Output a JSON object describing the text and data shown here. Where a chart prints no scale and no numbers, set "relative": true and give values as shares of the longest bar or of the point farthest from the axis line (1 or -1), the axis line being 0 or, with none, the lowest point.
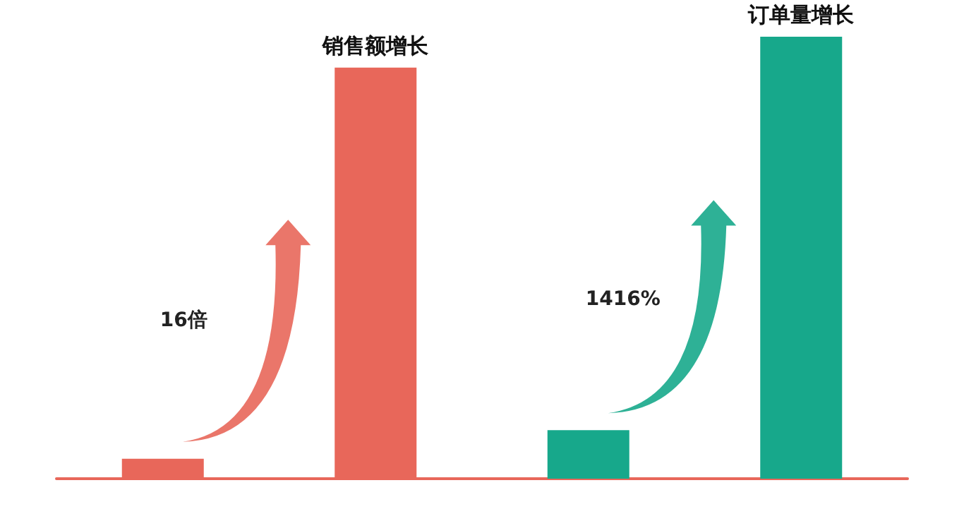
{
  "chart_data": {
    "type": "bar",
    "relative": true,
    "categories": [
      null,
      null,
      null,
      null
    ],
    "values": [
      0.045,
      0.93,
      0.11,
      1
    ],
    "colors": [
      "#e8675a",
      "#e8675a",
      "#17a88b",
      "#17a88b"
    ],
    "annotations": [
      "销售额增长",
      "16倍",
      "订单量增长",
      "1416%"
    ]
  }
}
